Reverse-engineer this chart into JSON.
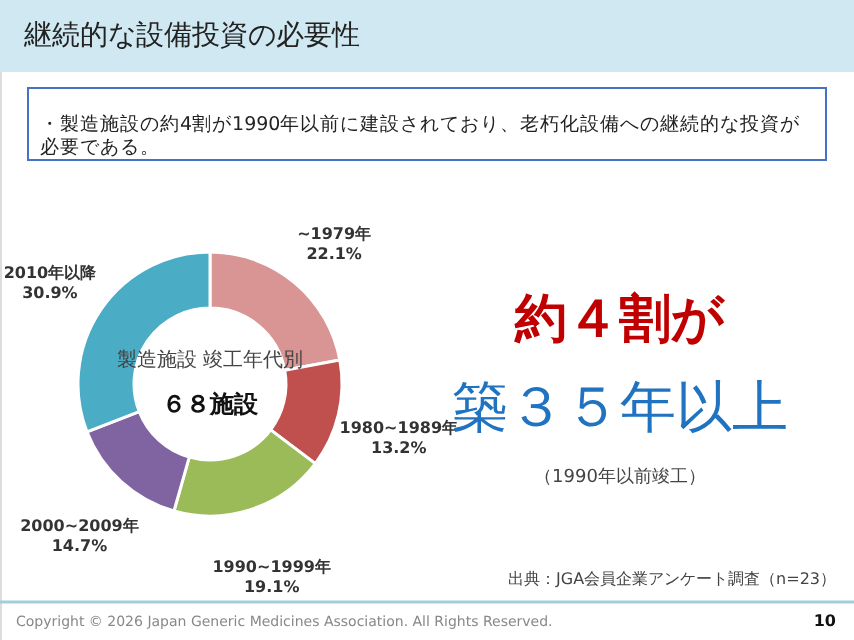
{
  "chart_data": {
    "type": "donut",
    "title": "継続的な設備投資の必要性",
    "subtitle": "・製造施設の約4割が1990年以前に建設されており、老朽化設備への継続的な投資が必要である。",
    "categories": [
      "~1979年",
      "1980~1989年",
      "1990~1999年",
      "2000~2009年",
      "2010年以降"
    ],
    "values": [
      22.1,
      13.2,
      19.1,
      14.7,
      30.9
    ],
    "value_labels": [
      "22.1%",
      "13.2%",
      "19.1%",
      "14.7%",
      "30.9%"
    ],
    "colors": [
      "#d99594",
      "#c0504d",
      "#9bbb59",
      "#8064a2",
      "#4bacc6"
    ],
    "annotations": [
      "製造施設 竣工年代別",
      "６８施設",
      "約４割が",
      "築３５年以上",
      "（1990年以前竣工）",
      "出典：JGA会員企業アンケート調査（n=23）",
      "Copyright © 2026 Japan Generic Medicines Association. All Rights Reserved.",
      "10"
    ]
  }
}
